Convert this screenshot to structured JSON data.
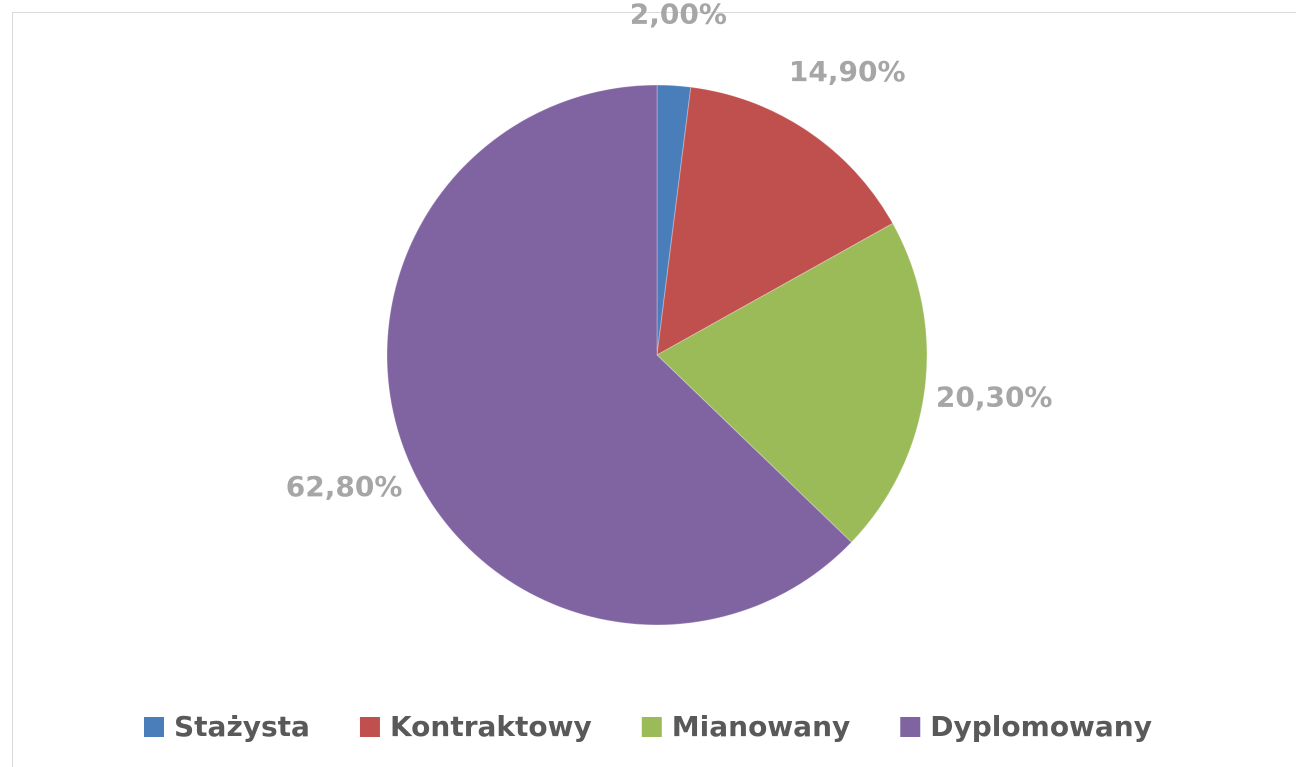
{
  "chart_data": {
    "type": "pie",
    "categories": [
      "Stażysta",
      "Kontraktowy",
      "Mianowany",
      "Dyplomowany"
    ],
    "values": [
      2.0,
      14.9,
      20.3,
      62.8
    ],
    "value_labels": [
      "2,00%",
      "14,90%",
      "20,30%",
      "62,80%"
    ],
    "colors": [
      "#4a7ebb",
      "#c0504d",
      "#9bbb59",
      "#8064a2"
    ],
    "legend": "bottom"
  }
}
